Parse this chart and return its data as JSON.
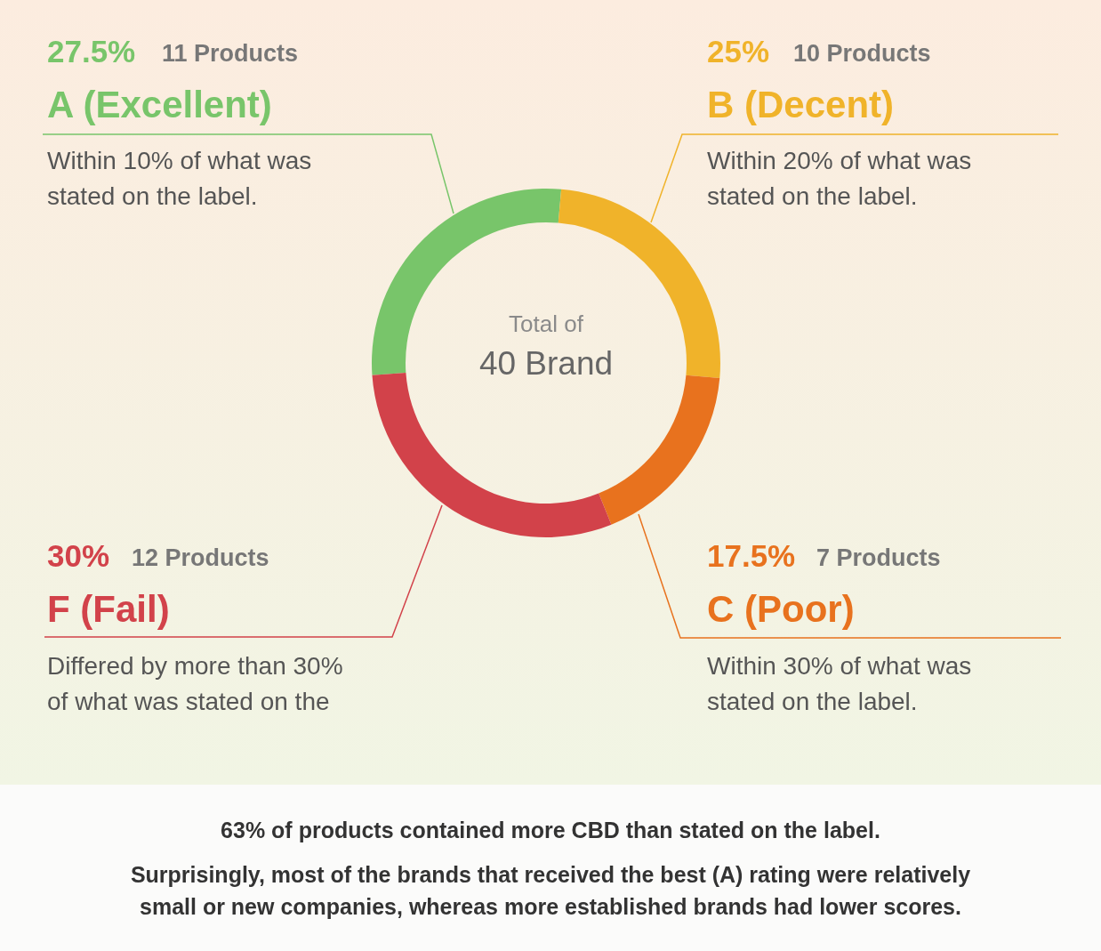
{
  "chart_data": {
    "type": "donut",
    "title": "40 Brand",
    "subtitle": "Total of",
    "categories": [
      "A (Excellent)",
      "B (Decent)",
      "C (Poor)",
      "F (Fail)"
    ],
    "values": [
      27.5,
      25,
      17.5,
      30
    ],
    "value_labels": [
      "27.5%",
      "25%",
      "17.5%",
      "30%"
    ],
    "colors": [
      "#78c56a",
      "#f0b32a",
      "#e8721e",
      "#d2424a"
    ],
    "annotations": [
      "11 Products",
      "10 Products",
      "7 Products",
      "12 Products",
      "Within 10% of what was stated on the label.",
      "Within 20% of what was stated on the label.",
      "Within 30% of what was stated on the label.",
      "Differed by more than 30% of what was stated on the",
      "63% of products contained more CBD than stated on the label.",
      "Surprisingly, most of the brands that received the best (A) rating were relatively small or new companies, whereas more established brands had lower scores."
    ]
  }
}
